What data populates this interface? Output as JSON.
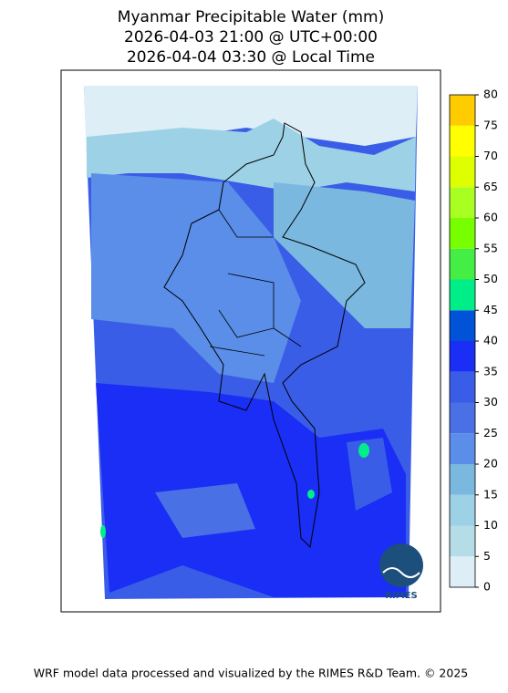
{
  "header": {
    "title": [
      "Myanmar Precipitable Water (mm)",
      "2026-04-03 21:00 @ UTC+00:00",
      "2026-04-04 03:30 @ Local Time"
    ]
  },
  "colorbar": {
    "ticks": [
      0,
      5,
      10,
      15,
      20,
      25,
      30,
      35,
      40,
      45,
      50,
      55,
      60,
      65,
      70,
      75,
      80
    ],
    "colors": [
      "#ddeef6",
      "#b5dde8",
      "#9dd1e6",
      "#7ab8e0",
      "#5a8ee8",
      "#4a70e6",
      "#3a5de8",
      "#1a2ef5",
      "#0052d6",
      "#00ee88",
      "#44ee44",
      "#77ff00",
      "#aaff22",
      "#ddff00",
      "#ffff00",
      "#ffcc00"
    ]
  },
  "logo": {
    "label": "RIMES"
  },
  "footer": "WRF model data processed and visualized by the RIMES R&D Team. © 2025"
}
